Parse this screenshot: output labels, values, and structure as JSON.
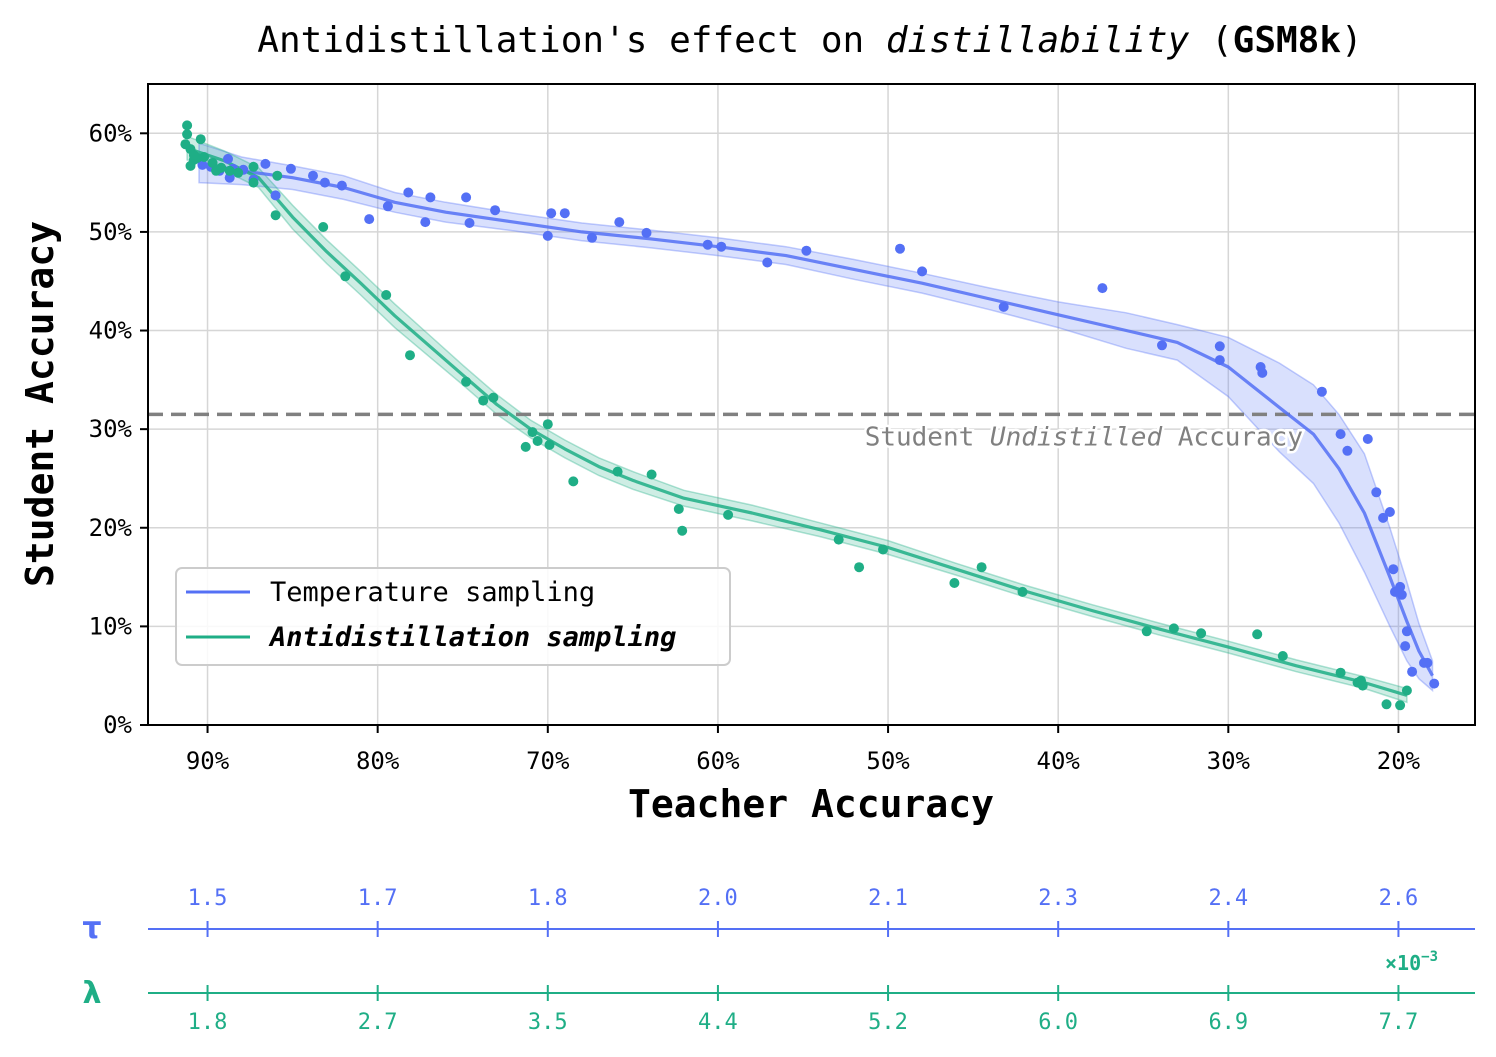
{
  "chart_data": {
    "type": "scatter",
    "title": {
      "part1": "Antidistillation's effect on ",
      "part2_italic": "distillability",
      "part3": " (",
      "part4_bold": "GSM8k",
      "part5": ")"
    },
    "xlabel": "Teacher Accuracy",
    "ylabel": "Student Accuracy",
    "xlim": [
      93.5,
      15.5
    ],
    "ylim": [
      0,
      65
    ],
    "x_ticks": [
      90,
      80,
      70,
      60,
      50,
      40,
      30,
      20
    ],
    "x_tick_labels": [
      "90%",
      "80%",
      "70%",
      "60%",
      "50%",
      "40%",
      "30%",
      "20%"
    ],
    "y_ticks": [
      0,
      10,
      20,
      30,
      40,
      50,
      60
    ],
    "y_tick_labels": [
      "0%",
      "10%",
      "20%",
      "30%",
      "40%",
      "50%",
      "60%"
    ],
    "grid": true,
    "legend_position": "lower-left",
    "reference_line": {
      "y": 31.5,
      "label_part1": "Student ",
      "label_part2_italic": "Undistilled",
      "label_part3": " Accuracy",
      "color": "#808080"
    },
    "series": [
      {
        "name": "Temperature sampling",
        "color": "#5470f5",
        "points": [
          [
            90.3,
            56.8
          ],
          [
            89.8,
            56.6
          ],
          [
            89.3,
            56.2
          ],
          [
            88.8,
            57.4
          ],
          [
            88.5,
            56.4
          ],
          [
            88.7,
            55.5
          ],
          [
            87.9,
            56.3
          ],
          [
            87.3,
            55.3
          ],
          [
            86.6,
            56.9
          ],
          [
            86.0,
            53.7
          ],
          [
            85.1,
            56.4
          ],
          [
            83.8,
            55.7
          ],
          [
            83.1,
            55.0
          ],
          [
            82.1,
            54.7
          ],
          [
            80.5,
            51.3
          ],
          [
            79.4,
            52.6
          ],
          [
            78.2,
            54.0
          ],
          [
            77.2,
            51.0
          ],
          [
            76.9,
            53.5
          ],
          [
            74.8,
            53.5
          ],
          [
            74.6,
            50.9
          ],
          [
            73.1,
            52.2
          ],
          [
            70.0,
            49.6
          ],
          [
            69.8,
            51.9
          ],
          [
            69.0,
            51.9
          ],
          [
            67.4,
            49.4
          ],
          [
            65.8,
            51.0
          ],
          [
            64.2,
            49.9
          ],
          [
            60.6,
            48.7
          ],
          [
            59.8,
            48.5
          ],
          [
            57.1,
            46.9
          ],
          [
            54.8,
            48.1
          ],
          [
            49.3,
            48.3
          ],
          [
            48.0,
            46.0
          ],
          [
            43.2,
            42.4
          ],
          [
            37.4,
            44.3
          ],
          [
            33.9,
            38.5
          ],
          [
            30.5,
            38.4
          ],
          [
            30.5,
            37.0
          ],
          [
            28.1,
            36.3
          ],
          [
            28.0,
            35.7
          ],
          [
            24.5,
            33.8
          ],
          [
            23.4,
            29.5
          ],
          [
            23.0,
            27.8
          ],
          [
            21.8,
            29.0
          ],
          [
            21.3,
            23.6
          ],
          [
            20.9,
            21.0
          ],
          [
            20.5,
            21.6
          ],
          [
            20.3,
            15.8
          ],
          [
            20.2,
            13.5
          ],
          [
            19.9,
            14.0
          ],
          [
            19.8,
            13.2
          ],
          [
            19.6,
            8.0
          ],
          [
            19.5,
            9.5
          ],
          [
            19.2,
            5.4
          ],
          [
            18.5,
            6.3
          ],
          [
            18.3,
            6.3
          ],
          [
            17.9,
            4.2
          ]
        ],
        "fit": [
          [
            90.5,
            57.0
          ],
          [
            88.0,
            56.2
          ],
          [
            85.0,
            55.5
          ],
          [
            82.0,
            54.5
          ],
          [
            79.0,
            53.0
          ],
          [
            76.0,
            52.0
          ],
          [
            72.0,
            51.0
          ],
          [
            68.0,
            50.0
          ],
          [
            64.0,
            49.3
          ],
          [
            60.0,
            48.5
          ],
          [
            56.0,
            47.6
          ],
          [
            52.0,
            46.2
          ],
          [
            48.0,
            44.8
          ],
          [
            44.0,
            43.2
          ],
          [
            40.0,
            41.6
          ],
          [
            36.0,
            40.0
          ],
          [
            33.0,
            38.8
          ],
          [
            30.0,
            36.3
          ],
          [
            27.0,
            32.2
          ],
          [
            25.0,
            29.5
          ],
          [
            23.5,
            26.0
          ],
          [
            22.0,
            21.5
          ],
          [
            20.5,
            15.0
          ],
          [
            19.5,
            10.5
          ],
          [
            18.8,
            7.5
          ],
          [
            18.0,
            5.0
          ]
        ],
        "band": [
          2.0,
          1.4,
          1.2,
          1.2,
          1.0,
          1.0,
          0.9,
          0.9,
          0.9,
          0.9,
          0.9,
          1.0,
          1.0,
          1.1,
          1.3,
          1.8,
          1.8,
          3.0,
          4.5,
          5.0,
          5.5,
          6.0,
          5.0,
          4.0,
          2.8,
          1.5
        ]
      },
      {
        "name": "Antidistillation sampling",
        "color": "#1fae86",
        "points": [
          [
            91.2,
            60.8
          ],
          [
            91.2,
            59.9
          ],
          [
            91.3,
            58.9
          ],
          [
            91.0,
            58.4
          ],
          [
            90.8,
            57.3
          ],
          [
            91.0,
            56.7
          ],
          [
            90.6,
            57.5
          ],
          [
            90.8,
            57.8
          ],
          [
            90.4,
            59.4
          ],
          [
            90.2,
            57.6
          ],
          [
            89.7,
            57.0
          ],
          [
            89.5,
            56.2
          ],
          [
            89.2,
            56.5
          ],
          [
            88.7,
            56.2
          ],
          [
            88.2,
            56.0
          ],
          [
            87.3,
            56.6
          ],
          [
            87.3,
            55.0
          ],
          [
            86.0,
            51.7
          ],
          [
            85.9,
            55.7
          ],
          [
            83.2,
            50.5
          ],
          [
            81.9,
            45.5
          ],
          [
            79.5,
            43.6
          ],
          [
            78.1,
            37.5
          ],
          [
            74.8,
            34.8
          ],
          [
            73.8,
            32.9
          ],
          [
            73.2,
            33.2
          ],
          [
            71.3,
            28.2
          ],
          [
            70.9,
            29.7
          ],
          [
            70.6,
            28.8
          ],
          [
            70.0,
            30.5
          ],
          [
            69.9,
            28.4
          ],
          [
            68.5,
            24.7
          ],
          [
            65.9,
            25.7
          ],
          [
            63.9,
            25.4
          ],
          [
            62.3,
            21.9
          ],
          [
            62.1,
            19.7
          ],
          [
            59.4,
            21.3
          ],
          [
            52.9,
            18.8
          ],
          [
            51.7,
            16.0
          ],
          [
            50.3,
            17.8
          ],
          [
            46.1,
            14.4
          ],
          [
            44.5,
            16.0
          ],
          [
            42.1,
            13.5
          ],
          [
            34.8,
            9.5
          ],
          [
            33.2,
            9.8
          ],
          [
            31.6,
            9.3
          ],
          [
            28.3,
            9.2
          ],
          [
            26.8,
            7.0
          ],
          [
            23.4,
            5.3
          ],
          [
            22.4,
            4.3
          ],
          [
            22.2,
            4.5
          ],
          [
            22.1,
            4.0
          ],
          [
            20.7,
            2.1
          ],
          [
            19.9,
            2.0
          ],
          [
            19.5,
            3.5
          ]
        ],
        "fit": [
          [
            91.2,
            58.5
          ],
          [
            89.0,
            57.2
          ],
          [
            87.0,
            55.5
          ],
          [
            85.0,
            51.5
          ],
          [
            83.0,
            48.0
          ],
          [
            81.0,
            44.8
          ],
          [
            79.0,
            41.5
          ],
          [
            77.0,
            38.5
          ],
          [
            75.0,
            35.5
          ],
          [
            73.0,
            32.5
          ],
          [
            71.0,
            30.0
          ],
          [
            69.0,
            28.0
          ],
          [
            67.0,
            26.2
          ],
          [
            65.0,
            24.8
          ],
          [
            62.0,
            23.0
          ],
          [
            58.0,
            21.5
          ],
          [
            54.0,
            19.8
          ],
          [
            50.0,
            18.0
          ],
          [
            46.0,
            15.8
          ],
          [
            42.0,
            13.6
          ],
          [
            38.0,
            11.6
          ],
          [
            34.0,
            9.7
          ],
          [
            30.0,
            7.9
          ],
          [
            26.0,
            6.0
          ],
          [
            22.0,
            4.3
          ],
          [
            19.5,
            3.0
          ]
        ],
        "band": [
          1.2,
          1.0,
          1.0,
          1.2,
          1.2,
          1.2,
          1.2,
          1.1,
          1.0,
          1.0,
          0.9,
          0.9,
          0.9,
          0.9,
          0.8,
          0.8,
          0.7,
          0.7,
          0.6,
          0.6,
          0.6,
          0.6,
          0.6,
          0.6,
          0.6,
          0.7
        ]
      }
    ],
    "secondary_axes": {
      "tau": {
        "symbol": "τ",
        "color": "#5470f5",
        "at_teacher_acc": [
          90,
          80,
          70,
          60,
          50,
          40,
          30,
          20
        ],
        "labels": [
          "1.5",
          "1.7",
          "1.8",
          "2.0",
          "2.1",
          "2.3",
          "2.4",
          "2.6"
        ]
      },
      "lambda": {
        "symbol": "λ",
        "color": "#1fae86",
        "at_teacher_acc": [
          90,
          80,
          70,
          60,
          50,
          40,
          30,
          20
        ],
        "labels": [
          "1.8",
          "2.7",
          "3.5",
          "4.4",
          "5.2",
          "6.0",
          "6.9",
          "7.7"
        ],
        "multiplier_base": "×10",
        "multiplier_exp": "−3"
      }
    }
  }
}
